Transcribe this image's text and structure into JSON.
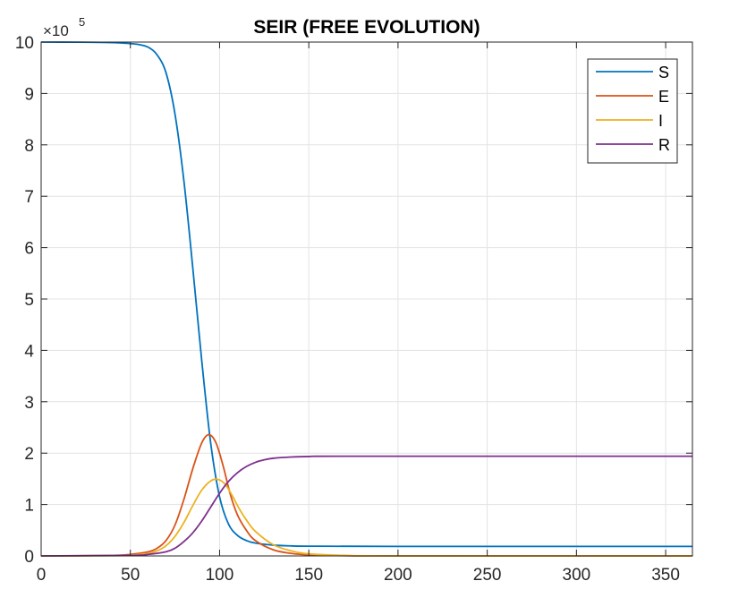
{
  "chart_data": {
    "type": "line",
    "title": "SEIR (FREE EVOLUTION)",
    "xlabel": "",
    "ylabel": "",
    "xlim": [
      0,
      365
    ],
    "ylim": [
      0,
      10
    ],
    "y_multiplier_label": "×10",
    "y_multiplier_exponent": "5",
    "x_ticks": [
      0,
      50,
      100,
      150,
      200,
      250,
      300,
      350
    ],
    "y_ticks": [
      0,
      1,
      2,
      3,
      4,
      5,
      6,
      7,
      8,
      9,
      10
    ],
    "grid": true,
    "legend_position": "top-right",
    "series": [
      {
        "name": "S",
        "color": "#0072BD",
        "points": [
          [
            0,
            10
          ],
          [
            20,
            9.998
          ],
          [
            40,
            9.99
          ],
          [
            50,
            9.97
          ],
          [
            55,
            9.95
          ],
          [
            60,
            9.9
          ],
          [
            65,
            9.75
          ],
          [
            70,
            9.4
          ],
          [
            75,
            8.6
          ],
          [
            80,
            7.3
          ],
          [
            85,
            5.6
          ],
          [
            90,
            3.8
          ],
          [
            95,
            2.2
          ],
          [
            100,
            1.15
          ],
          [
            105,
            0.62
          ],
          [
            110,
            0.4
          ],
          [
            115,
            0.3
          ],
          [
            120,
            0.25
          ],
          [
            130,
            0.21
          ],
          [
            140,
            0.195
          ],
          [
            150,
            0.19
          ],
          [
            200,
            0.185
          ],
          [
            365,
            0.185
          ]
        ]
      },
      {
        "name": "E",
        "color": "#D95319",
        "points": [
          [
            0,
            0
          ],
          [
            40,
            0.01
          ],
          [
            50,
            0.03
          ],
          [
            60,
            0.08
          ],
          [
            65,
            0.15
          ],
          [
            70,
            0.3
          ],
          [
            75,
            0.6
          ],
          [
            80,
            1.1
          ],
          [
            85,
            1.7
          ],
          [
            90,
            2.2
          ],
          [
            94,
            2.36
          ],
          [
            98,
            2.2
          ],
          [
            102,
            1.75
          ],
          [
            106,
            1.2
          ],
          [
            110,
            0.8
          ],
          [
            115,
            0.5
          ],
          [
            120,
            0.3
          ],
          [
            130,
            0.12
          ],
          [
            140,
            0.05
          ],
          [
            150,
            0.02
          ],
          [
            170,
            0.005
          ],
          [
            200,
            0
          ],
          [
            365,
            0
          ]
        ]
      },
      {
        "name": "I",
        "color": "#EDB120",
        "points": [
          [
            0,
            0
          ],
          [
            40,
            0.005
          ],
          [
            50,
            0.015
          ],
          [
            60,
            0.05
          ],
          [
            65,
            0.1
          ],
          [
            70,
            0.2
          ],
          [
            75,
            0.38
          ],
          [
            80,
            0.65
          ],
          [
            85,
            0.98
          ],
          [
            90,
            1.28
          ],
          [
            95,
            1.46
          ],
          [
            99,
            1.49
          ],
          [
            103,
            1.4
          ],
          [
            107,
            1.18
          ],
          [
            111,
            0.92
          ],
          [
            115,
            0.7
          ],
          [
            120,
            0.48
          ],
          [
            130,
            0.22
          ],
          [
            140,
            0.1
          ],
          [
            150,
            0.04
          ],
          [
            170,
            0.01
          ],
          [
            200,
            0
          ],
          [
            365,
            0
          ]
        ]
      },
      {
        "name": "R",
        "color": "#7E2F8E",
        "points": [
          [
            0,
            0
          ],
          [
            50,
            0.01
          ],
          [
            60,
            0.03
          ],
          [
            70,
            0.08
          ],
          [
            75,
            0.15
          ],
          [
            80,
            0.28
          ],
          [
            85,
            0.45
          ],
          [
            90,
            0.68
          ],
          [
            95,
            0.95
          ],
          [
            100,
            1.22
          ],
          [
            105,
            1.45
          ],
          [
            110,
            1.62
          ],
          [
            115,
            1.74
          ],
          [
            120,
            1.82
          ],
          [
            125,
            1.87
          ],
          [
            130,
            1.9
          ],
          [
            140,
            1.925
          ],
          [
            150,
            1.935
          ],
          [
            175,
            1.94
          ],
          [
            365,
            1.94
          ]
        ]
      }
    ]
  }
}
